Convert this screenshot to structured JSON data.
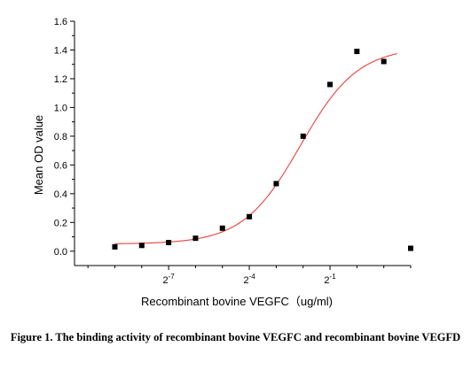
{
  "chart_data": {
    "type": "scatter",
    "title": "",
    "xlabel": "Recombinant bovine VEGFC（ug/ml)",
    "ylabel": "Mean OD value",
    "x_scale": "log2",
    "xlim": [
      -10.5,
      2.0
    ],
    "ylim": [
      -0.1,
      1.6
    ],
    "y_ticks": [
      "0.0",
      "0.2",
      "0.4",
      "0.6",
      "0.8",
      "1.0",
      "1.2",
      "1.4",
      "1.6"
    ],
    "x_ticks": [
      {
        "base": "2",
        "exp": "-7",
        "value": -7
      },
      {
        "base": "2",
        "exp": "-4",
        "value": -4
      },
      {
        "base": "2",
        "exp": "-1",
        "value": -1
      }
    ],
    "grid": false,
    "legend": "none",
    "series": [
      {
        "kind": "points",
        "marker": "square",
        "color": "#000000",
        "x_log2": [
          -9,
          -8,
          -7,
          -6,
          -5,
          -4,
          -3,
          -2,
          -1,
          0,
          1,
          2
        ],
        "y": [
          0.03,
          0.04,
          0.06,
          0.09,
          0.16,
          0.24,
          0.47,
          0.8,
          1.16,
          1.39,
          1.32,
          0.02
        ]
      },
      {
        "kind": "fit-curve",
        "model": "4PL",
        "color": "#e8413a",
        "bottom": 0.05,
        "top": 1.42,
        "ec50_log2": -2.1,
        "hill": 1.35,
        "x_log2_range": [
          -9,
          1.5
        ]
      }
    ]
  },
  "caption": {
    "text": "Figure 1. The binding activity of recombinant bovine VEGFC and recombinant bovine VEGFD"
  }
}
